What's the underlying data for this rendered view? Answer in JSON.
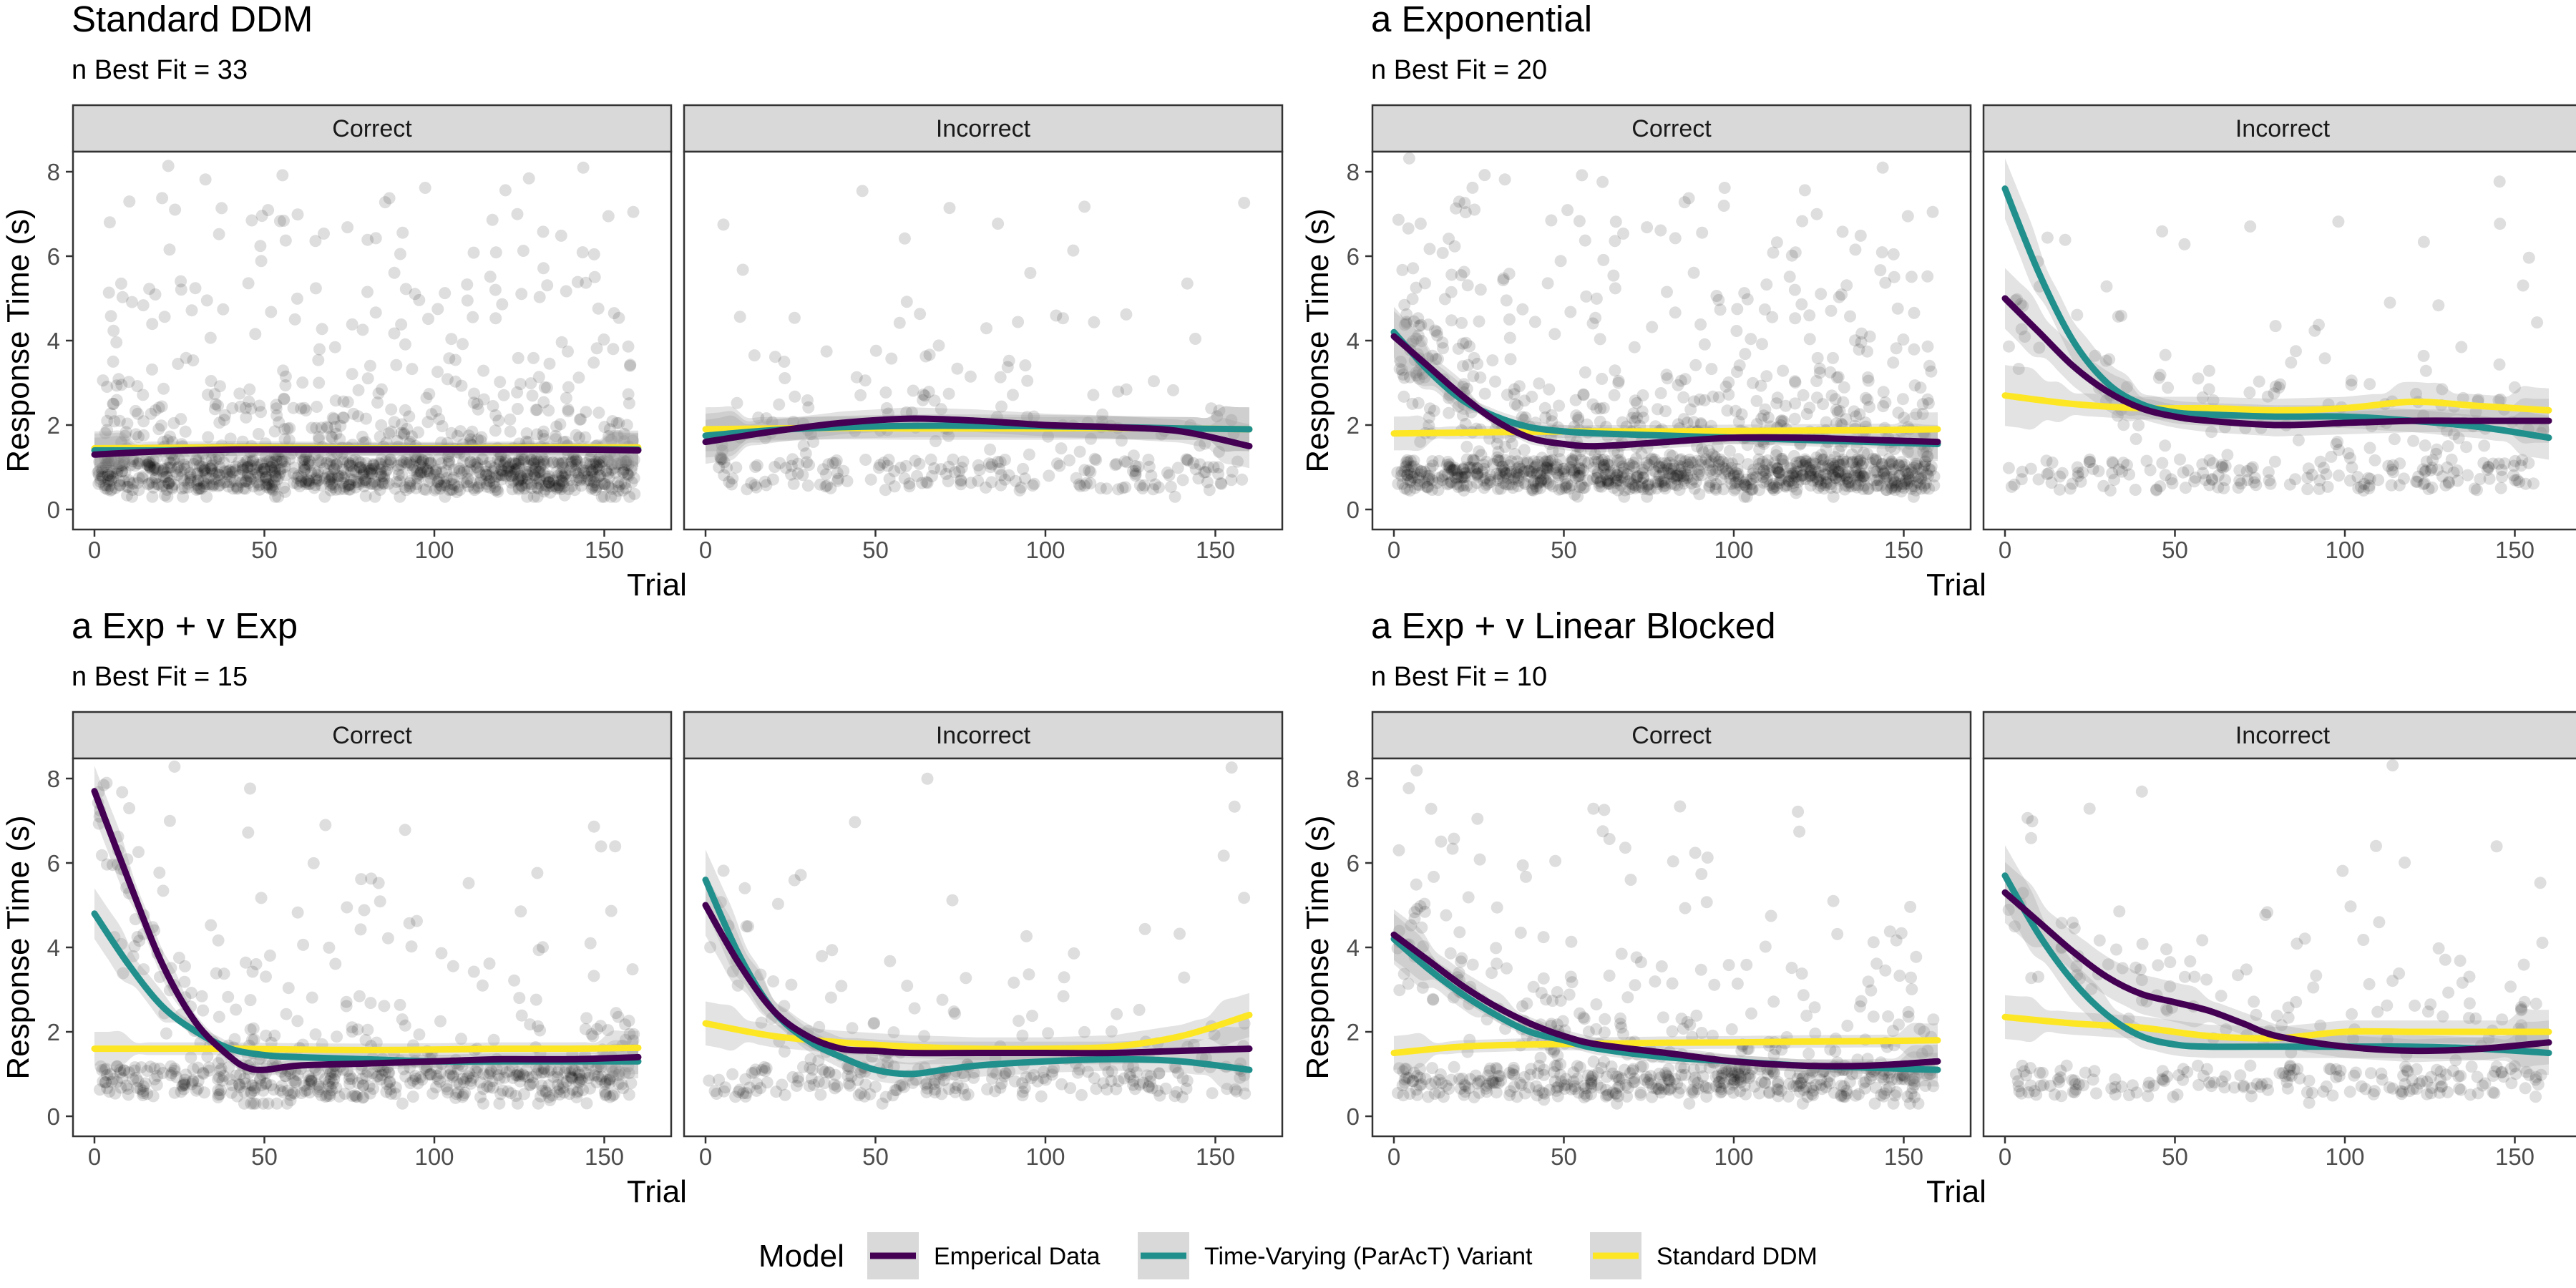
{
  "chart_data": [
    {
      "type": "scatter",
      "title": "Standard DDM",
      "subtitle": "n Best Fit = 33",
      "xlabel": "Trial",
      "ylabel": "Response Time (s)",
      "xlim": [
        0,
        160
      ],
      "ylim": [
        0,
        8.4
      ],
      "xticks": [
        0,
        50,
        100,
        150
      ],
      "yticks": [
        0,
        2,
        4,
        6,
        8
      ],
      "facets": [
        {
          "strip": "Correct",
          "density": "high",
          "series": [
            {
              "name": "Emperical Data",
              "x": [
                0,
                20,
                40,
                60,
                80,
                100,
                120,
                140,
                160
              ],
              "y": [
                1.3,
                1.38,
                1.42,
                1.42,
                1.42,
                1.42,
                1.42,
                1.42,
                1.4
              ]
            },
            {
              "name": "Time-Varying (ParAcT) Variant",
              "x": [
                0,
                20,
                40,
                60,
                80,
                100,
                120,
                140,
                160
              ],
              "y": [
                1.4,
                1.4,
                1.42,
                1.43,
                1.43,
                1.43,
                1.43,
                1.43,
                1.42
              ]
            },
            {
              "name": "Standard DDM",
              "x": [
                0,
                20,
                40,
                60,
                80,
                100,
                120,
                140,
                160
              ],
              "y": [
                1.45,
                1.46,
                1.47,
                1.46,
                1.45,
                1.45,
                1.46,
                1.47,
                1.47
              ]
            }
          ]
        },
        {
          "strip": "Incorrect",
          "density": "low",
          "series": [
            {
              "name": "Emperical Data",
              "x": [
                0,
                20,
                40,
                60,
                80,
                100,
                120,
                140,
                160
              ],
              "y": [
                1.6,
                1.85,
                2.05,
                2.15,
                2.1,
                2.0,
                1.95,
                1.85,
                1.5
              ]
            },
            {
              "name": "Time-Varying (ParAcT) Variant",
              "x": [
                0,
                20,
                40,
                60,
                80,
                100,
                120,
                140,
                160
              ],
              "y": [
                1.75,
                1.88,
                1.95,
                1.98,
                1.98,
                1.97,
                1.95,
                1.92,
                1.9
              ]
            },
            {
              "name": "Standard DDM",
              "x": [
                0,
                20,
                40,
                60,
                80,
                100,
                120,
                140,
                160
              ],
              "y": [
                1.9,
                1.92,
                1.93,
                1.92,
                1.92,
                1.92,
                1.93,
                1.92,
                1.9
              ]
            }
          ]
        }
      ]
    },
    {
      "type": "scatter",
      "title": "a Exponential",
      "subtitle": "n Best Fit = 20",
      "xlabel": "Trial",
      "ylabel": "Response Time (s)",
      "xlim": [
        0,
        160
      ],
      "ylim": [
        0,
        8.4
      ],
      "xticks": [
        0,
        50,
        100,
        150
      ],
      "yticks": [
        0,
        2,
        4,
        6,
        8
      ],
      "facets": [
        {
          "strip": "Correct",
          "density": "high",
          "series": [
            {
              "name": "Emperical Data",
              "x": [
                0,
                10,
                20,
                30,
                40,
                50,
                60,
                80,
                100,
                120,
                140,
                160
              ],
              "y": [
                4.1,
                3.4,
                2.7,
                2.1,
                1.7,
                1.55,
                1.5,
                1.6,
                1.7,
                1.7,
                1.65,
                1.6
              ]
            },
            {
              "name": "Time-Varying (ParAcT) Variant",
              "x": [
                0,
                10,
                20,
                30,
                40,
                50,
                60,
                80,
                100,
                120,
                140,
                160
              ],
              "y": [
                4.2,
                3.3,
                2.6,
                2.2,
                1.95,
                1.85,
                1.8,
                1.75,
                1.7,
                1.65,
                1.6,
                1.55
              ]
            },
            {
              "name": "Standard DDM",
              "x": [
                0,
                20,
                40,
                60,
                80,
                100,
                120,
                140,
                160
              ],
              "y": [
                1.8,
                1.82,
                1.84,
                1.85,
                1.85,
                1.86,
                1.87,
                1.88,
                1.9
              ]
            }
          ]
        },
        {
          "strip": "Incorrect",
          "density": "low",
          "series": [
            {
              "name": "Emperical Data",
              "x": [
                0,
                10,
                20,
                30,
                40,
                50,
                60,
                80,
                100,
                120,
                140,
                160
              ],
              "y": [
                5.0,
                4.2,
                3.4,
                2.8,
                2.4,
                2.2,
                2.1,
                2.0,
                2.05,
                2.1,
                2.1,
                2.1
              ]
            },
            {
              "name": "Time-Varying (ParAcT) Variant",
              "x": [
                0,
                10,
                20,
                30,
                40,
                50,
                60,
                80,
                100,
                120,
                140,
                160
              ],
              "y": [
                7.6,
                5.6,
                4.0,
                3.0,
                2.5,
                2.3,
                2.25,
                2.2,
                2.2,
                2.1,
                1.95,
                1.7
              ]
            },
            {
              "name": "Standard DDM",
              "x": [
                0,
                20,
                40,
                60,
                80,
                100,
                120,
                140,
                160
              ],
              "y": [
                2.7,
                2.5,
                2.4,
                2.4,
                2.35,
                2.4,
                2.55,
                2.45,
                2.35
              ]
            }
          ]
        }
      ]
    },
    {
      "type": "scatter",
      "title": "a Exp + v Exp",
      "subtitle": "n Best Fit = 15",
      "xlabel": "Trial",
      "ylabel": "Response Time (s)",
      "xlim": [
        0,
        160
      ],
      "ylim": [
        0,
        8.4
      ],
      "xticks": [
        0,
        50,
        100,
        150
      ],
      "yticks": [
        0,
        2,
        4,
        6,
        8
      ],
      "facets": [
        {
          "strip": "Correct",
          "density": "medium",
          "series": [
            {
              "name": "Emperical Data",
              "x": [
                0,
                10,
                20,
                30,
                40,
                45,
                50,
                60,
                80,
                100,
                120,
                140,
                160
              ],
              "y": [
                7.7,
                5.6,
                3.6,
                2.2,
                1.4,
                1.15,
                1.1,
                1.2,
                1.25,
                1.3,
                1.35,
                1.35,
                1.4
              ]
            },
            {
              "name": "Time-Varying (ParAcT) Variant",
              "x": [
                0,
                10,
                20,
                30,
                40,
                50,
                60,
                80,
                100,
                120,
                140,
                160
              ],
              "y": [
                4.8,
                3.6,
                2.6,
                2.0,
                1.6,
                1.45,
                1.4,
                1.35,
                1.3,
                1.3,
                1.3,
                1.3
              ]
            },
            {
              "name": "Standard DDM",
              "x": [
                0,
                20,
                40,
                60,
                80,
                100,
                120,
                140,
                160
              ],
              "y": [
                1.6,
                1.6,
                1.6,
                1.58,
                1.57,
                1.58,
                1.6,
                1.6,
                1.62
              ]
            }
          ]
        },
        {
          "strip": "Incorrect",
          "density": "low",
          "series": [
            {
              "name": "Emperical Data",
              "x": [
                0,
                10,
                20,
                30,
                40,
                50,
                60,
                80,
                100,
                120,
                140,
                160
              ],
              "y": [
                5.0,
                3.6,
                2.5,
                1.9,
                1.6,
                1.55,
                1.5,
                1.5,
                1.5,
                1.5,
                1.55,
                1.6
              ]
            },
            {
              "name": "Time-Varying (ParAcT) Variant",
              "x": [
                0,
                10,
                20,
                30,
                40,
                50,
                60,
                70,
                80,
                100,
                120,
                140,
                160
              ],
              "y": [
                5.6,
                3.8,
                2.5,
                1.8,
                1.4,
                1.1,
                1.0,
                1.1,
                1.2,
                1.3,
                1.35,
                1.3,
                1.1
              ]
            },
            {
              "name": "Standard DDM",
              "x": [
                0,
                20,
                40,
                60,
                80,
                100,
                120,
                140,
                160
              ],
              "y": [
                2.2,
                1.9,
                1.75,
                1.65,
                1.6,
                1.6,
                1.65,
                1.9,
                2.4
              ]
            }
          ]
        }
      ]
    },
    {
      "type": "scatter",
      "title": "a Exp + v Linear Blocked",
      "subtitle": "n Best Fit = 10",
      "xlabel": "Trial",
      "ylabel": "Response Time (s)",
      "xlim": [
        0,
        160
      ],
      "ylim": [
        0,
        8.4
      ],
      "xticks": [
        0,
        50,
        100,
        150
      ],
      "yticks": [
        0,
        2,
        4,
        6,
        8
      ],
      "facets": [
        {
          "strip": "Correct",
          "density": "medium",
          "series": [
            {
              "name": "Emperical Data",
              "x": [
                0,
                10,
                20,
                30,
                40,
                50,
                60,
                80,
                100,
                120,
                140,
                160
              ],
              "y": [
                4.3,
                3.7,
                3.1,
                2.6,
                2.2,
                1.9,
                1.7,
                1.5,
                1.3,
                1.2,
                1.2,
                1.3
              ]
            },
            {
              "name": "Time-Varying (ParAcT) Variant",
              "x": [
                0,
                10,
                20,
                30,
                40,
                50,
                60,
                80,
                100,
                120,
                140,
                160
              ],
              "y": [
                4.2,
                3.5,
                2.9,
                2.4,
                2.0,
                1.8,
                1.6,
                1.4,
                1.3,
                1.2,
                1.15,
                1.1
              ]
            },
            {
              "name": "Standard DDM",
              "x": [
                0,
                20,
                40,
                60,
                80,
                100,
                120,
                140,
                160
              ],
              "y": [
                1.5,
                1.65,
                1.7,
                1.72,
                1.74,
                1.75,
                1.77,
                1.78,
                1.8
              ]
            }
          ]
        },
        {
          "strip": "Incorrect",
          "density": "low",
          "series": [
            {
              "name": "Emperical Data",
              "x": [
                0,
                10,
                20,
                30,
                40,
                50,
                60,
                70,
                80,
                100,
                120,
                140,
                160
              ],
              "y": [
                5.3,
                4.6,
                3.9,
                3.3,
                2.9,
                2.7,
                2.5,
                2.2,
                1.9,
                1.65,
                1.55,
                1.6,
                1.75
              ]
            },
            {
              "name": "Time-Varying (ParAcT) Variant",
              "x": [
                0,
                10,
                20,
                30,
                40,
                50,
                60,
                80,
                100,
                120,
                140,
                160
              ],
              "y": [
                5.7,
                4.3,
                3.2,
                2.4,
                1.9,
                1.7,
                1.65,
                1.65,
                1.65,
                1.65,
                1.6,
                1.5
              ]
            },
            {
              "name": "Standard DDM",
              "x": [
                0,
                20,
                40,
                60,
                80,
                100,
                120,
                140,
                160
              ],
              "y": [
                2.35,
                2.2,
                2.1,
                1.9,
                1.85,
                2.0,
                2.0,
                2.0,
                2.0
              ]
            }
          ]
        }
      ]
    }
  ],
  "legend": {
    "title": "Model",
    "placement": "bottom",
    "items": [
      {
        "label": "Emperical Data",
        "color": "#440154"
      },
      {
        "label": "Time-Varying (ParAcT) Variant",
        "color": "#21908C"
      },
      {
        "label": "Standard DDM",
        "color": "#FDE725"
      }
    ]
  },
  "colors": {
    "strip_fill": "#d9d9d9",
    "panel_border": "#333333",
    "points": "#000000",
    "ribbon": "#999999"
  }
}
